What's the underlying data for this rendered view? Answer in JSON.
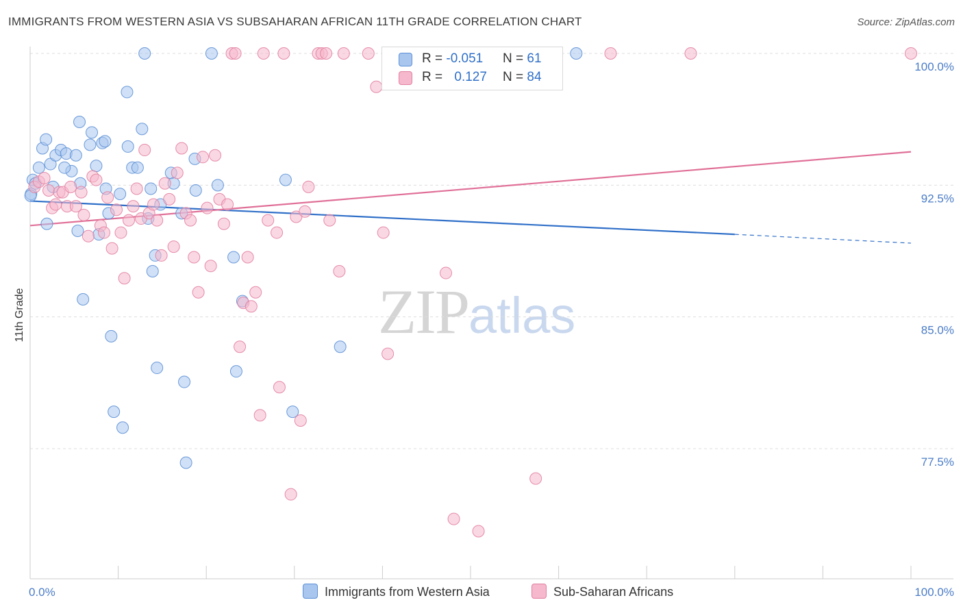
{
  "header": {
    "title": "IMMIGRANTS FROM WESTERN ASIA VS SUBSAHARAN AFRICAN 11TH GRADE CORRELATION CHART",
    "source": "Source: ZipAtlas.com"
  },
  "watermark": {
    "zip": "ZIP",
    "atlas": "atlas"
  },
  "legend": {
    "rows": [
      {
        "r_label": "R = ",
        "r_value": "-0.051",
        "n_label": "N = ",
        "n_value": "61"
      },
      {
        "r_label": "R = ",
        "r_value": "0.127",
        "n_label": "N = ",
        "n_value": "84"
      }
    ]
  },
  "bottom_legend": {
    "series_a": "Immigrants from Western Asia",
    "series_b": "Sub-Saharan Africans"
  },
  "colors": {
    "blue_fill": "#a9c6ef",
    "blue_stroke": "#5b8fd6",
    "blue_line": "#2f6fc8",
    "pink_fill": "#f5b8cc",
    "pink_stroke": "#e27fa0",
    "pink_line": "#e06f97",
    "grid": "#dddddd",
    "tick_label": "#4a7cc7"
  },
  "chart_data": {
    "type": "scatter",
    "ylabel": "11th Grade",
    "xlim": [
      0,
      100
    ],
    "ylim": [
      71.5,
      101.2
    ],
    "x_tick_labels": [
      "0.0%",
      "100.0%"
    ],
    "y_ticks": [
      {
        "value": 100.0,
        "label": "100.0%"
      },
      {
        "value": 92.5,
        "label": "92.5%"
      },
      {
        "value": 85.0,
        "label": "85.0%"
      },
      {
        "value": 77.5,
        "label": "77.5%"
      }
    ],
    "series": [
      {
        "name": "Immigrants from Western Asia",
        "color": "blue",
        "trend": {
          "x0": 0,
          "y0": 91.6,
          "x1": 80,
          "y1": 89.7,
          "dash_to_x": 100,
          "dash_to_y": 89.2
        },
        "points": [
          [
            0.1,
            92.0
          ],
          [
            0.3,
            92.8
          ],
          [
            0.6,
            92.6
          ],
          [
            1.0,
            93.5
          ],
          [
            1.4,
            94.6
          ],
          [
            1.8,
            95.1
          ],
          [
            2.3,
            93.7
          ],
          [
            2.9,
            94.2
          ],
          [
            3.5,
            94.5
          ],
          [
            4.1,
            94.3
          ],
          [
            4.7,
            93.3
          ],
          [
            5.2,
            94.2
          ],
          [
            5.7,
            92.6
          ],
          [
            1.9,
            90.3
          ],
          [
            2.6,
            92.4
          ],
          [
            3.9,
            93.5
          ],
          [
            5.4,
            89.9
          ],
          [
            6.0,
            86.0
          ],
          [
            5.6,
            96.1
          ],
          [
            6.8,
            94.8
          ],
          [
            7.0,
            95.5
          ],
          [
            7.5,
            93.6
          ],
          [
            7.8,
            89.7
          ],
          [
            8.2,
            94.9
          ],
          [
            8.6,
            92.3
          ],
          [
            8.5,
            95.0
          ],
          [
            8.9,
            90.9
          ],
          [
            9.2,
            83.9
          ],
          [
            9.5,
            79.6
          ],
          [
            10.2,
            92.0
          ],
          [
            10.5,
            78.7
          ],
          [
            11.0,
            97.8
          ],
          [
            11.1,
            94.7
          ],
          [
            11.6,
            93.5
          ],
          [
            12.2,
            93.5
          ],
          [
            12.7,
            95.7
          ],
          [
            13.0,
            100.0
          ],
          [
            13.4,
            90.6
          ],
          [
            13.7,
            92.3
          ],
          [
            13.9,
            87.6
          ],
          [
            14.2,
            88.5
          ],
          [
            14.4,
            82.1
          ],
          [
            14.8,
            91.4
          ],
          [
            16.0,
            93.2
          ],
          [
            16.3,
            92.6
          ],
          [
            17.2,
            90.9
          ],
          [
            17.5,
            81.3
          ],
          [
            17.7,
            76.7
          ],
          [
            18.7,
            94.0
          ],
          [
            18.8,
            92.2
          ],
          [
            20.6,
            100.0
          ],
          [
            21.3,
            92.5
          ],
          [
            23.1,
            88.4
          ],
          [
            23.4,
            81.9
          ],
          [
            24.1,
            85.9
          ],
          [
            29.0,
            92.8
          ],
          [
            29.8,
            79.6
          ],
          [
            35.2,
            83.3
          ],
          [
            40.8,
            100.0
          ],
          [
            62.0,
            100.0
          ],
          [
            0.05,
            91.9
          ]
        ]
      },
      {
        "name": "Sub-Saharan Africans",
        "color": "pink",
        "trend": {
          "x0": 0,
          "y0": 90.2,
          "x1": 100,
          "y1": 94.4
        },
        "points": [
          [
            0.5,
            92.4
          ],
          [
            1.0,
            92.7
          ],
          [
            1.6,
            92.9
          ],
          [
            2.1,
            92.2
          ],
          [
            2.5,
            91.2
          ],
          [
            2.9,
            91.4
          ],
          [
            3.3,
            92.1
          ],
          [
            3.7,
            92.1
          ],
          [
            4.2,
            91.3
          ],
          [
            4.6,
            92.4
          ],
          [
            5.2,
            91.3
          ],
          [
            5.8,
            92.1
          ],
          [
            6.1,
            90.8
          ],
          [
            6.6,
            89.6
          ],
          [
            7.1,
            93.0
          ],
          [
            7.5,
            92.8
          ],
          [
            8.0,
            90.2
          ],
          [
            8.4,
            89.8
          ],
          [
            8.8,
            91.8
          ],
          [
            9.3,
            88.9
          ],
          [
            9.8,
            91.1
          ],
          [
            10.3,
            89.8
          ],
          [
            10.7,
            87.2
          ],
          [
            11.2,
            90.5
          ],
          [
            11.7,
            91.3
          ],
          [
            12.1,
            92.3
          ],
          [
            12.6,
            90.6
          ],
          [
            13.0,
            94.5
          ],
          [
            13.5,
            90.9
          ],
          [
            14.0,
            91.4
          ],
          [
            14.4,
            90.5
          ],
          [
            14.9,
            88.5
          ],
          [
            15.3,
            92.6
          ],
          [
            15.8,
            91.7
          ],
          [
            16.3,
            89.0
          ],
          [
            16.7,
            93.2
          ],
          [
            17.2,
            94.6
          ],
          [
            17.7,
            90.9
          ],
          [
            18.2,
            90.5
          ],
          [
            18.6,
            88.4
          ],
          [
            19.1,
            86.4
          ],
          [
            19.6,
            94.1
          ],
          [
            20.1,
            91.2
          ],
          [
            20.5,
            87.9
          ],
          [
            21.0,
            94.2
          ],
          [
            21.5,
            91.7
          ],
          [
            22.0,
            90.3
          ],
          [
            22.4,
            91.4
          ],
          [
            22.9,
            100.0
          ],
          [
            23.3,
            100.0
          ],
          [
            23.8,
            83.3
          ],
          [
            24.2,
            85.8
          ],
          [
            24.7,
            88.4
          ],
          [
            25.1,
            85.6
          ],
          [
            25.6,
            86.4
          ],
          [
            26.1,
            79.4
          ],
          [
            26.5,
            100.0
          ],
          [
            27.0,
            90.5
          ],
          [
            28.0,
            89.8
          ],
          [
            28.3,
            81.0
          ],
          [
            28.8,
            100.0
          ],
          [
            29.6,
            74.9
          ],
          [
            30.2,
            90.7
          ],
          [
            30.7,
            79.1
          ],
          [
            31.2,
            91.0
          ],
          [
            31.6,
            92.4
          ],
          [
            32.7,
            100.0
          ],
          [
            33.1,
            100.0
          ],
          [
            33.6,
            100.0
          ],
          [
            34.0,
            90.5
          ],
          [
            35.1,
            87.6
          ],
          [
            35.6,
            100.0
          ],
          [
            38.4,
            100.0
          ],
          [
            39.3,
            98.1
          ],
          [
            40.1,
            89.8
          ],
          [
            40.6,
            82.9
          ],
          [
            42.3,
            99.3
          ],
          [
            47.2,
            87.5
          ],
          [
            48.1,
            73.5
          ],
          [
            50.9,
            72.8
          ],
          [
            57.4,
            75.8
          ],
          [
            65.9,
            100.0
          ],
          [
            75.0,
            100.0
          ],
          [
            100.0,
            100.0
          ]
        ]
      }
    ]
  }
}
